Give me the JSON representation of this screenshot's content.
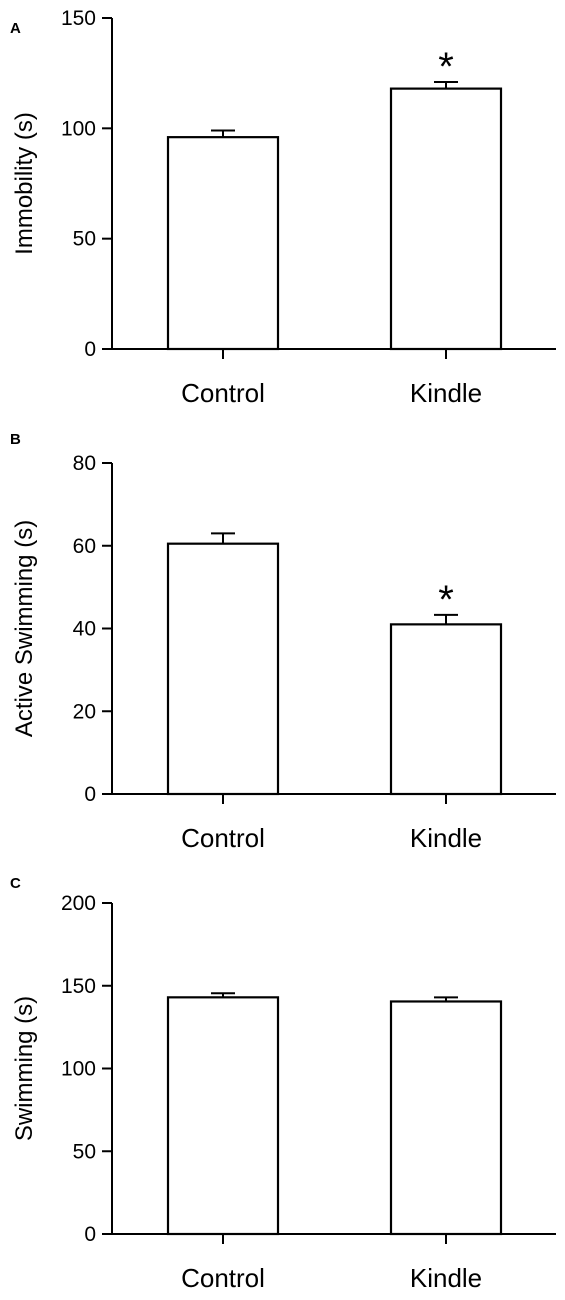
{
  "chart_data": [
    {
      "type": "bar",
      "panel": "A",
      "categories": [
        "Control",
        "Kindle"
      ],
      "values": [
        96,
        118
      ],
      "errors": [
        3,
        3
      ],
      "annotations": [
        "",
        "*"
      ],
      "ylabel": "Immobility (s)",
      "ylim": [
        0,
        150
      ],
      "yticks": [
        0,
        50,
        100,
        150
      ],
      "grid": false
    },
    {
      "type": "bar",
      "panel": "B",
      "categories": [
        "Control",
        "Kindle"
      ],
      "values": [
        60.5,
        41
      ],
      "errors": [
        2.5,
        2.3
      ],
      "annotations": [
        "",
        "*"
      ],
      "ylabel": "Active Swimming (s)",
      "ylim": [
        0,
        80
      ],
      "yticks": [
        0,
        20,
        40,
        60,
        80
      ],
      "grid": false
    },
    {
      "type": "bar",
      "panel": "C",
      "categories": [
        "Control",
        "Kindle"
      ],
      "values": [
        143,
        140.5
      ],
      "errors": [
        2.5,
        2.5
      ],
      "annotations": [
        "",
        ""
      ],
      "ylabel": "Swimming (s)",
      "ylim": [
        0,
        200
      ],
      "yticks": [
        0,
        50,
        100,
        150,
        200
      ],
      "grid": false
    }
  ],
  "colors": {
    "bar_fill": "#ffffff",
    "stroke": "#000000"
  }
}
